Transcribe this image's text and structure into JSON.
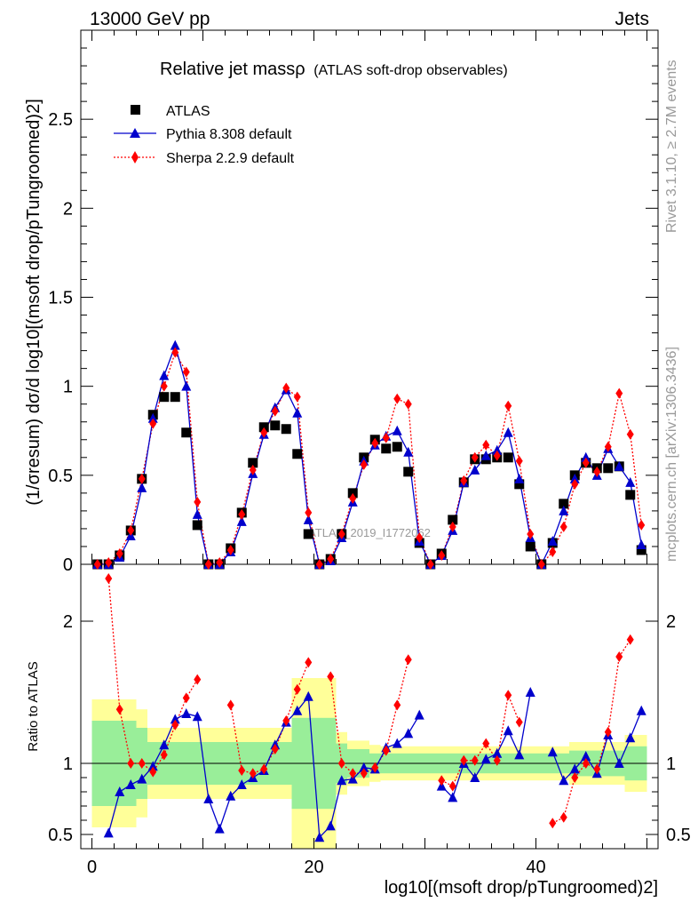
{
  "header": {
    "beam": "13000 GeV pp",
    "process": "Jets",
    "side_rivet": "Rivet 3.1.10, ≥ 2.7M events",
    "side_mcplots": "mcplots.cern.ch [arXiv:1306.3436]",
    "watermark": "ATLAS_2019_I1772062"
  },
  "title": {
    "main": "Relative jet massρ",
    "sub": "(ATLAS soft-drop observables)"
  },
  "legend": {
    "atlas": "ATLAS",
    "pythia": "Pythia 8.308 default",
    "sherpa": "Sherpa 2.2.9 default"
  },
  "axes": {
    "ylabel_main": "(1/σresum) dσ/d log10[(msoft drop/pTungroomed)2]",
    "ylabel_ratio": "Ratio to ATLAS",
    "xlabel": "log10[(msoft drop/pTungroomed)2]",
    "x_ticks": [
      "0",
      "20",
      "40"
    ],
    "y_ticks_main": [
      "0",
      "0.5",
      "1",
      "1.5",
      "2",
      "2.5"
    ],
    "y_ticks_ratio": [
      "0.5",
      "1",
      "2"
    ]
  },
  "colors": {
    "atlas": "#000000",
    "pythia": "#0000cc",
    "sherpa": "#ff0000",
    "band_inner": "#99ee99",
    "band_outer": "#ffff99"
  },
  "chart_data": {
    "type": "scatter",
    "xlim": [
      -1,
      51
    ],
    "ylim": [
      0,
      3.0
    ],
    "ratio_ylim": [
      0.4,
      2.4
    ],
    "x": [
      0.5,
      1.5,
      2.5,
      3.5,
      4.5,
      5.5,
      6.5,
      7.5,
      8.5,
      9.5,
      10.5,
      11.5,
      12.5,
      13.5,
      14.5,
      15.5,
      16.5,
      17.5,
      18.5,
      19.5,
      20.5,
      21.5,
      22.5,
      23.5,
      24.5,
      25.5,
      26.5,
      27.5,
      28.5,
      29.5,
      30.5,
      31.5,
      32.5,
      33.5,
      34.5,
      35.5,
      36.5,
      37.5,
      38.5,
      39.5,
      40.5,
      41.5,
      42.5,
      43.5,
      44.5,
      45.5,
      46.5,
      47.5,
      48.5,
      49.5
    ],
    "series": [
      {
        "name": "ATLAS",
        "values": [
          0.0,
          0.0,
          0.05,
          0.19,
          0.48,
          0.84,
          0.94,
          0.94,
          0.74,
          0.22,
          0.0,
          0.0,
          0.09,
          0.29,
          0.57,
          0.77,
          0.78,
          0.76,
          0.62,
          0.17,
          0.0,
          0.03,
          0.17,
          0.4,
          0.6,
          0.7,
          0.65,
          0.66,
          0.52,
          0.12,
          0.0,
          0.06,
          0.25,
          0.46,
          0.59,
          0.59,
          0.6,
          0.6,
          0.45,
          0.1,
          0.0,
          0.12,
          0.34,
          0.5,
          0.57,
          0.54,
          0.54,
          0.55,
          0.39,
          0.08
        ]
      },
      {
        "name": "Pythia 8.308 default",
        "values": [
          0.0,
          0.0,
          0.04,
          0.16,
          0.43,
          0.82,
          1.06,
          1.23,
          1.0,
          0.28,
          0.0,
          0.0,
          0.07,
          0.24,
          0.51,
          0.73,
          0.88,
          0.98,
          0.85,
          0.25,
          0.0,
          0.02,
          0.15,
          0.35,
          0.58,
          0.67,
          0.72,
          0.75,
          0.63,
          0.13,
          0.0,
          0.05,
          0.19,
          0.46,
          0.53,
          0.61,
          0.64,
          0.74,
          0.48,
          0.15,
          0.0,
          0.13,
          0.3,
          0.48,
          0.6,
          0.5,
          0.65,
          0.55,
          0.46,
          0.11
        ]
      },
      {
        "name": "Sherpa 2.2.9 default",
        "values": [
          0.0,
          0.01,
          0.06,
          0.19,
          0.48,
          0.79,
          1.0,
          1.19,
          1.08,
          0.35,
          0.0,
          0.01,
          0.08,
          0.28,
          0.53,
          0.74,
          0.86,
          0.99,
          0.94,
          0.29,
          0.0,
          0.03,
          0.17,
          0.37,
          0.56,
          0.68,
          0.71,
          0.93,
          0.9,
          0.15,
          0.0,
          0.05,
          0.21,
          0.47,
          0.6,
          0.67,
          0.61,
          0.89,
          0.58,
          0.17,
          0.0,
          0.07,
          0.21,
          0.45,
          0.57,
          0.52,
          0.66,
          0.96,
          0.73,
          0.22
        ]
      }
    ],
    "ratio_series": [
      {
        "name": "Pythia 8.308 default",
        "values": [
          null,
          0.51,
          0.8,
          0.85,
          0.89,
          0.98,
          1.13,
          1.31,
          1.35,
          1.33,
          0.75,
          0.54,
          0.77,
          0.85,
          0.9,
          0.95,
          1.13,
          1.29,
          1.37,
          1.47,
          0.48,
          0.56,
          0.88,
          0.89,
          0.97,
          0.96,
          1.11,
          1.14,
          1.21,
          1.34,
          null,
          0.84,
          0.76,
          1.0,
          0.9,
          1.03,
          1.07,
          1.23,
          1.06,
          1.5,
          null,
          1.08,
          0.88,
          0.96,
          1.05,
          0.93,
          1.2,
          1.0,
          1.18,
          1.37
        ]
      },
      {
        "name": "Sherpa 2.2.9 default",
        "values": [
          null,
          2.3,
          1.38,
          1.0,
          1.0,
          0.94,
          1.06,
          1.27,
          1.46,
          1.59,
          null,
          null,
          1.41,
          0.95,
          0.93,
          0.96,
          1.1,
          1.3,
          1.52,
          1.71,
          null,
          1.61,
          1.0,
          0.93,
          0.93,
          0.97,
          1.09,
          1.41,
          1.73,
          null,
          null,
          0.88,
          0.84,
          1.02,
          1.02,
          1.14,
          1.02,
          1.48,
          1.29,
          null,
          null,
          0.58,
          0.62,
          0.9,
          1.0,
          0.96,
          1.22,
          1.75,
          1.87,
          null
        ]
      }
    ],
    "band_outer": [
      0.55,
      0.55,
      0.55,
      0.55,
      0.62,
      0.75,
      0.75,
      0.75,
      0.75,
      0.75,
      0.75,
      0.75,
      0.75,
      0.75,
      0.75,
      0.75,
      0.75,
      0.75,
      0.4,
      0.4,
      0.4,
      0.4,
      0.78,
      0.84,
      0.84,
      0.87,
      0.88,
      0.88,
      0.88,
      0.88,
      0.88,
      0.88,
      0.88,
      0.88,
      0.88,
      0.88,
      0.88,
      0.88,
      0.88,
      0.88,
      0.88,
      0.88,
      0.88,
      0.85,
      0.85,
      0.85,
      0.85,
      0.85,
      0.8,
      0.8
    ],
    "band_inner": [
      0.7,
      0.7,
      0.7,
      0.7,
      0.75,
      0.85,
      0.85,
      0.85,
      0.85,
      0.85,
      0.85,
      0.85,
      0.85,
      0.85,
      0.85,
      0.85,
      0.85,
      0.85,
      0.68,
      0.68,
      0.68,
      0.68,
      0.86,
      0.9,
      0.9,
      0.93,
      0.93,
      0.93,
      0.93,
      0.93,
      0.93,
      0.93,
      0.93,
      0.93,
      0.93,
      0.93,
      0.93,
      0.93,
      0.93,
      0.93,
      0.93,
      0.93,
      0.93,
      0.91,
      0.91,
      0.91,
      0.91,
      0.91,
      0.88,
      0.88
    ]
  }
}
